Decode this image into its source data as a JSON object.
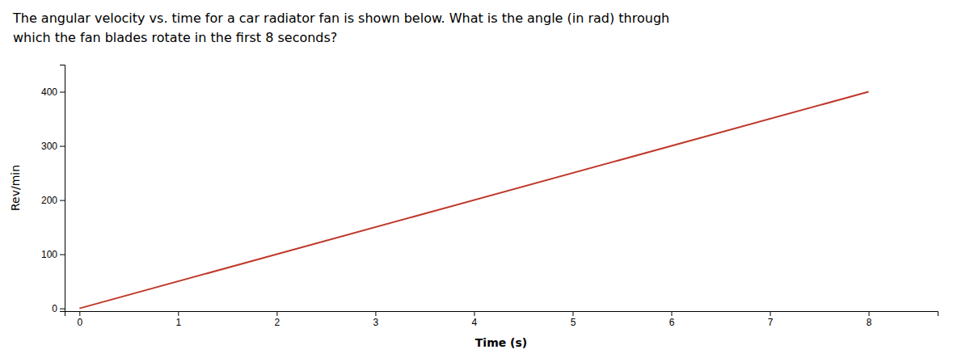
{
  "chart_data": {
    "type": "line",
    "title": "The angular velocity vs. time for a car radiator fan is shown below. What is the angle (in rad) through",
    "subtitle": "which the fan blades rotate in the first 8 seconds?",
    "x_label": "Time (s)",
    "y_label": "Rev/min",
    "x": [
      0,
      8
    ],
    "values": [
      0,
      400
    ],
    "color": "#c0392b",
    "xlim": [
      -0.15,
      8.7
    ],
    "ylim": [
      -5,
      450
    ],
    "xticks": [
      0,
      1,
      2,
      3,
      4,
      5,
      6,
      7,
      8
    ],
    "yticks": [
      0,
      100,
      200,
      300,
      400
    ],
    "grid": false
  }
}
